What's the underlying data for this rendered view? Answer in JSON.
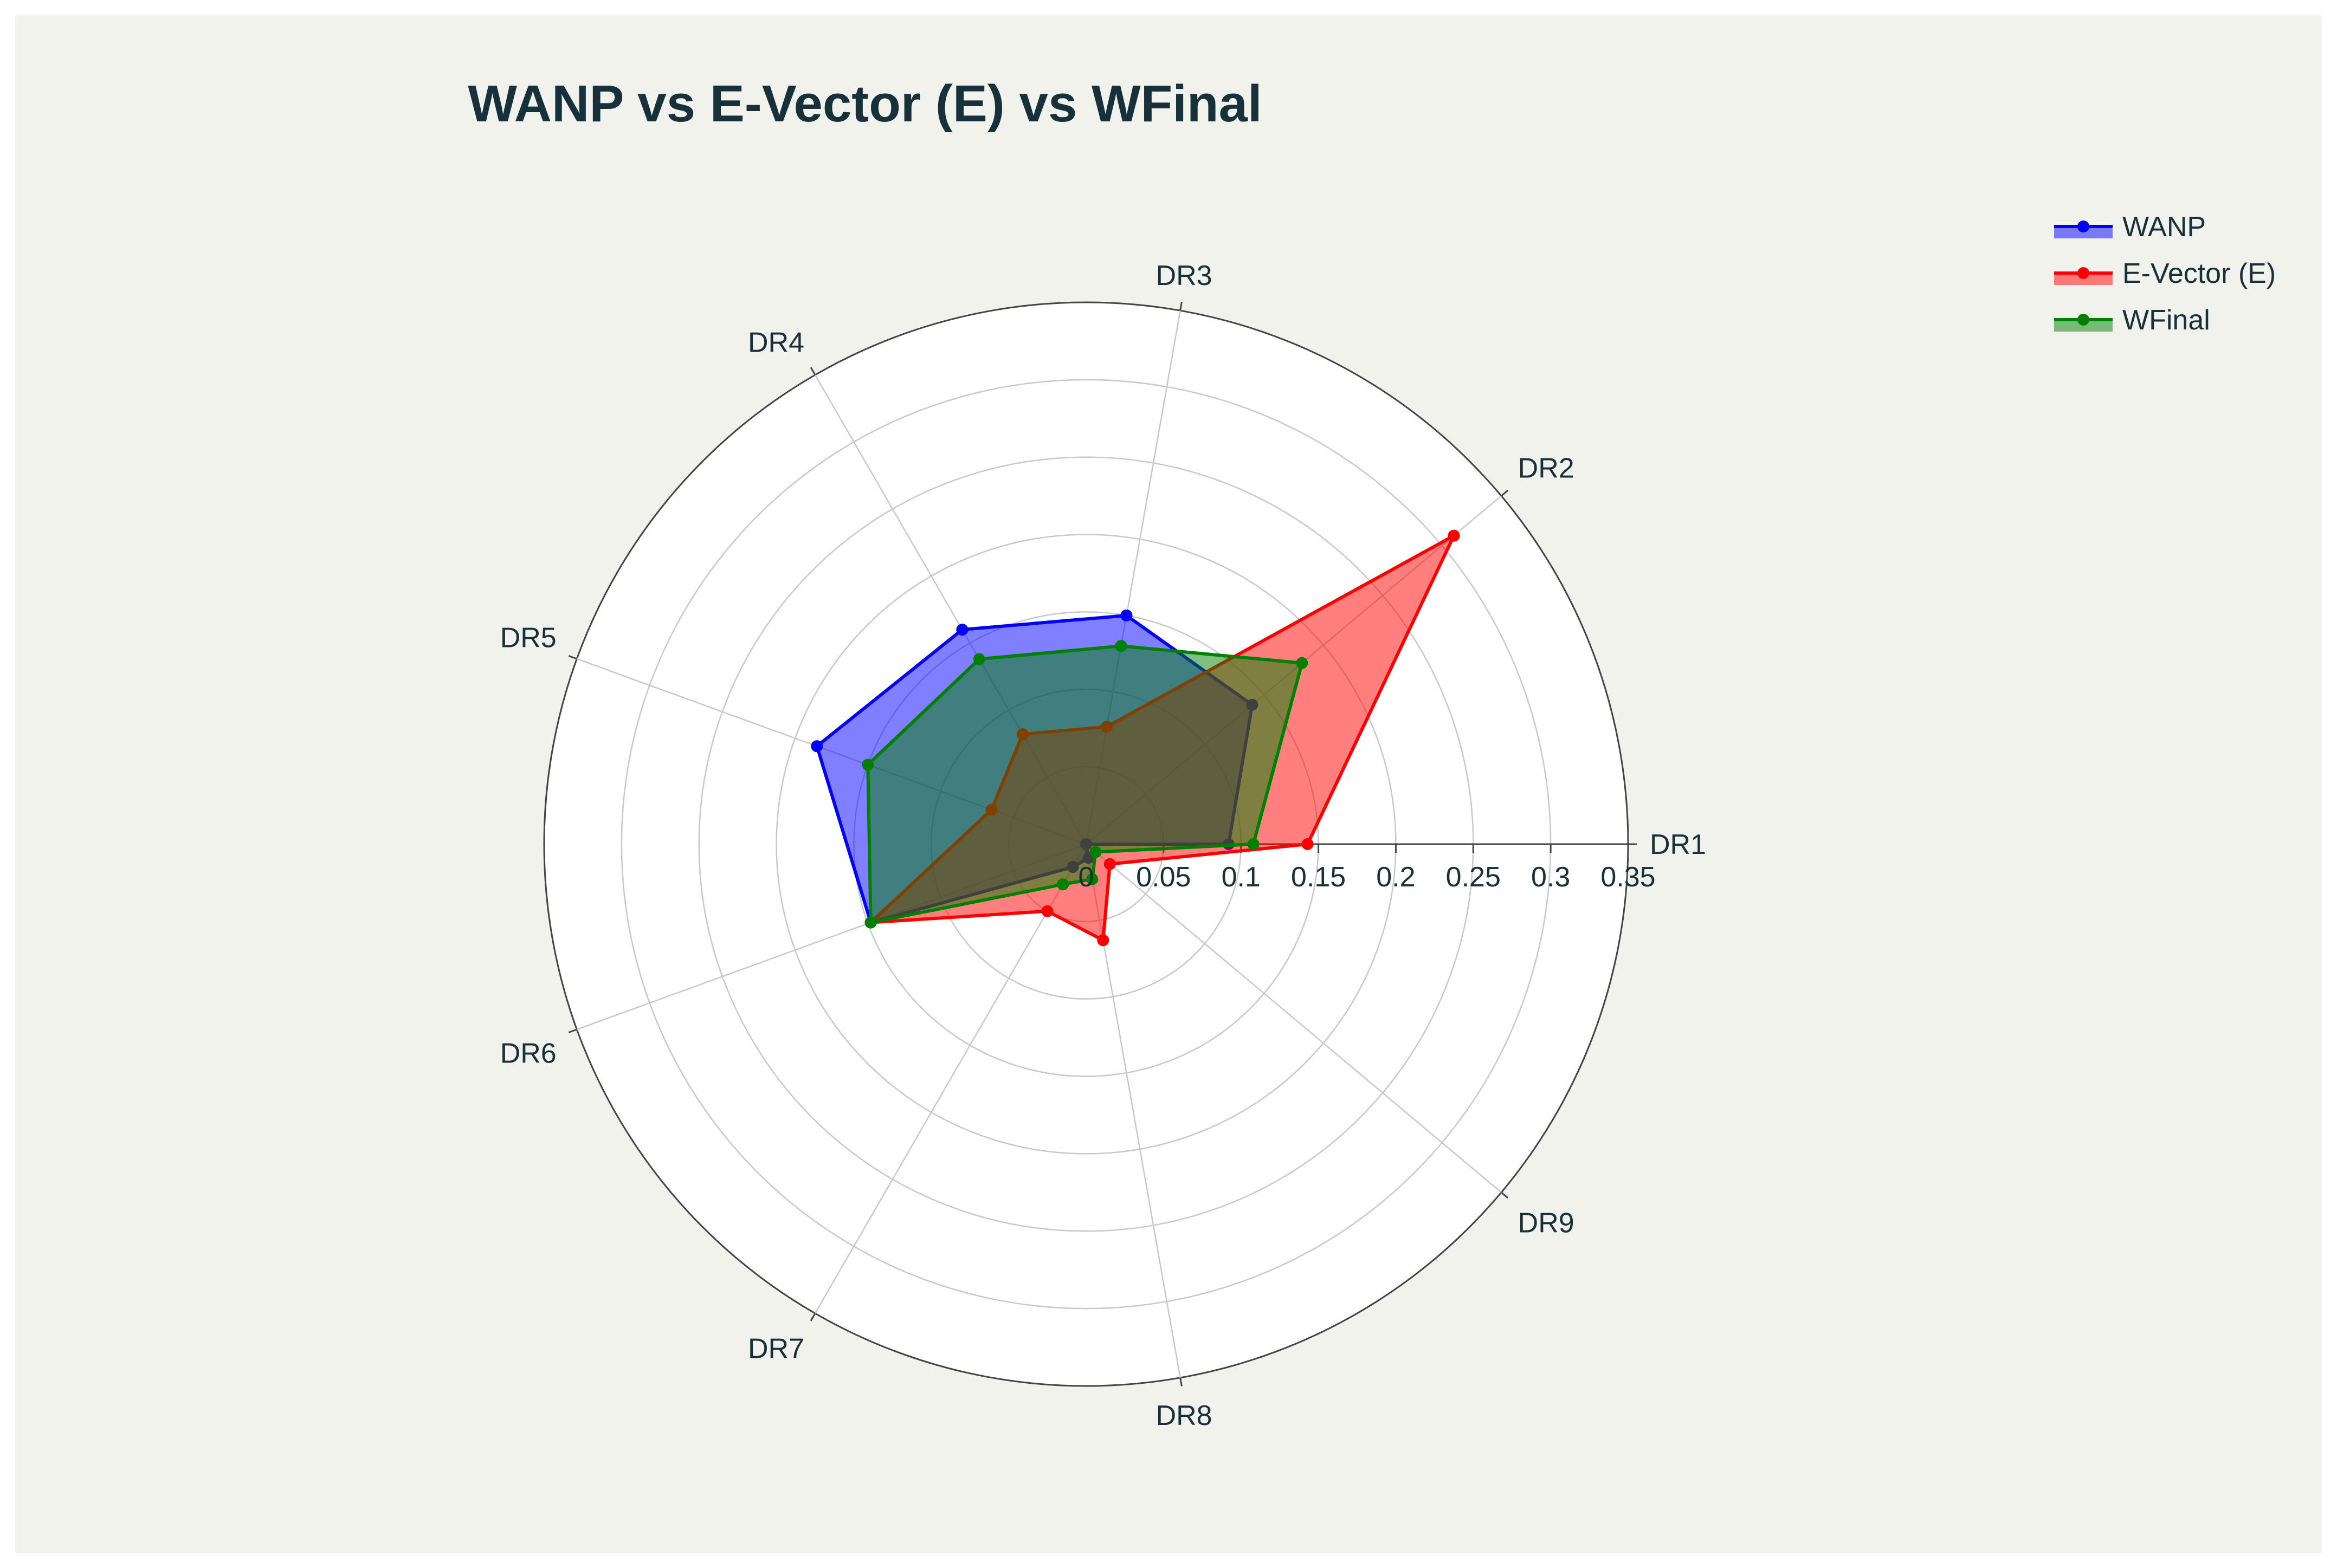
{
  "chart_data": {
    "type": "radar",
    "title": "WANP vs E-Vector (E) vs WFinal",
    "categories": [
      "DR1",
      "DR2",
      "DR3",
      "DR4",
      "DR5",
      "DR6",
      "DR7",
      "DR8",
      "DR9"
    ],
    "radial_ticks": [
      "0",
      "0.05",
      "0.1",
      "0.15",
      "0.2",
      "0.25",
      "0.3",
      "0.35"
    ],
    "radial_range": [
      0,
      0.35
    ],
    "grid": true,
    "legend_position": "top-right",
    "series": [
      {
        "name": "WANP",
        "color": "#0000ff",
        "values": [
          0.092,
          0.14,
          0.15,
          0.16,
          0.185,
          0.148,
          0.017,
          0.009,
          0.0
        ]
      },
      {
        "name": "E-Vector (E)",
        "color": "#ff0000",
        "values": [
          0.143,
          0.31,
          0.077,
          0.082,
          0.065,
          0.148,
          0.05,
          0.063,
          0.02
        ]
      },
      {
        "name": "WFinal",
        "color": "#008000",
        "values": [
          0.108,
          0.182,
          0.13,
          0.138,
          0.15,
          0.148,
          0.03,
          0.023,
          0.008
        ]
      }
    ]
  }
}
